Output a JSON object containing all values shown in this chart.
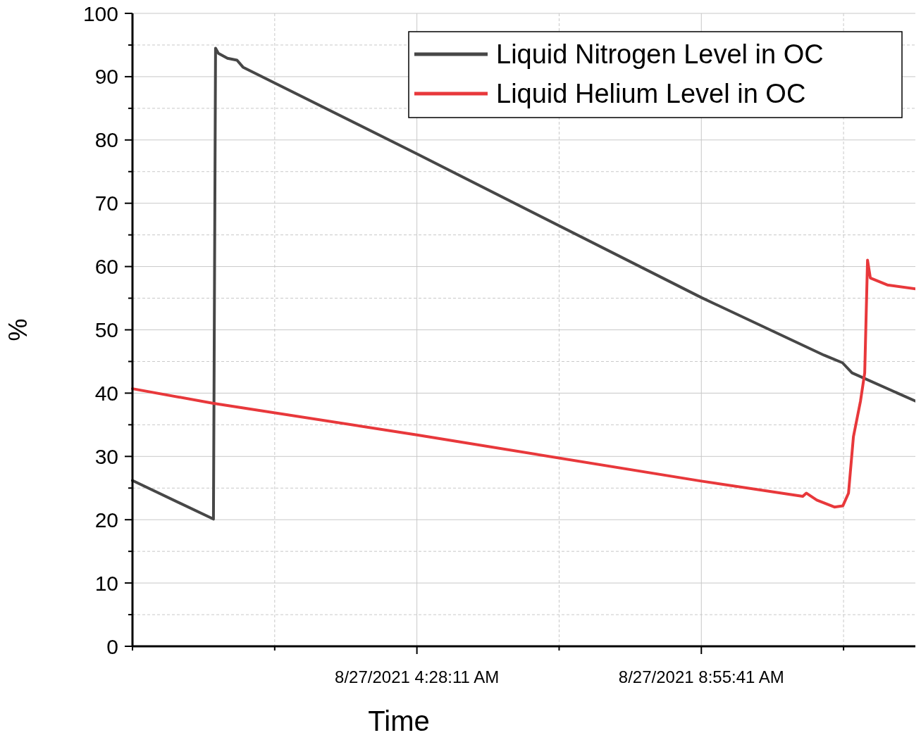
{
  "chart_data": {
    "type": "line",
    "xlabel": "Time",
    "ylabel": "%",
    "xlim": [
      "2021-08-27T00:00:41",
      "2021-08-27T12:20:17"
    ],
    "ylim": [
      0,
      100
    ],
    "xticks": [
      {
        "value": "2021-08-27T00:00:41",
        "label": null
      },
      {
        "value": "2021-08-27T02:14:26",
        "label": null
      },
      {
        "value": "2021-08-27T04:28:11",
        "label": "8/27/2021 4:28:11 AM"
      },
      {
        "value": "2021-08-27T06:41:56",
        "label": null
      },
      {
        "value": "2021-08-27T08:55:41",
        "label": "8/27/2021 8:55:41 AM"
      },
      {
        "value": "2021-08-27T11:09:26",
        "label": null
      }
    ],
    "yticks": [
      0,
      {
        "value": 5,
        "label": null
      },
      10,
      {
        "value": 15,
        "label": null
      },
      20,
      {
        "value": 25,
        "label": null
      },
      30,
      {
        "value": 35,
        "label": null
      },
      40,
      {
        "value": 45,
        "label": null
      },
      50,
      {
        "value": 55,
        "label": null
      },
      60,
      {
        "value": 65,
        "label": null
      },
      70,
      {
        "value": 75,
        "label": null
      },
      80,
      {
        "value": 85,
        "label": null
      },
      90,
      {
        "value": 95,
        "label": null
      },
      100
    ],
    "grid": true,
    "legend": "top right",
    "marker": "none",
    "line_style": "solid",
    "series": [
      {
        "name": "Liquid Nitrogen Level in OC",
        "color": "#474747",
        "x": [
          "2021-08-27T00:00:41",
          "2021-08-27T01:16:50",
          "2021-08-27T01:18:49",
          "2021-08-27T01:21:28",
          "2021-08-27T01:30:00",
          "2021-08-27T01:39:00",
          "2021-08-27T01:44:38",
          "2021-08-27T04:28:11",
          "2021-08-27T08:55:41",
          "2021-08-27T10:51:00",
          "2021-08-27T11:08:24",
          "2021-08-27T11:17:24",
          "2021-08-27T12:20:17"
        ],
        "values": [
          26.2,
          20.1,
          94.5,
          93.7,
          92.9,
          92.6,
          91.5,
          77.8,
          55.1,
          46.0,
          44.8,
          43.2,
          38.5
        ]
      },
      {
        "name": "Liquid Helium Level in OC",
        "color": "#e8383b",
        "x": [
          "2021-08-27T00:00:41",
          "2021-08-27T01:16:10",
          "2021-08-27T04:28:11",
          "2021-08-27T08:55:41",
          "2021-08-27T10:31:05",
          "2021-08-27T10:34:23",
          "2021-08-27T10:44:20",
          "2021-08-27T11:00:50",
          "2021-08-27T11:08:49",
          "2021-08-27T11:14:06",
          "2021-08-27T11:18:43",
          "2021-08-27T11:25:19",
          "2021-08-27T11:29:20",
          "2021-08-27T11:31:59",
          "2021-08-27T11:34:37",
          "2021-08-27T11:50:31",
          "2021-08-27T12:20:17"
        ],
        "values": [
          40.7,
          38.4,
          33.4,
          26.1,
          23.7,
          24.2,
          23.1,
          22.0,
          22.2,
          24.2,
          33.1,
          38.7,
          43.2,
          61.0,
          58.2,
          57.1,
          56.4
        ]
      }
    ]
  }
}
